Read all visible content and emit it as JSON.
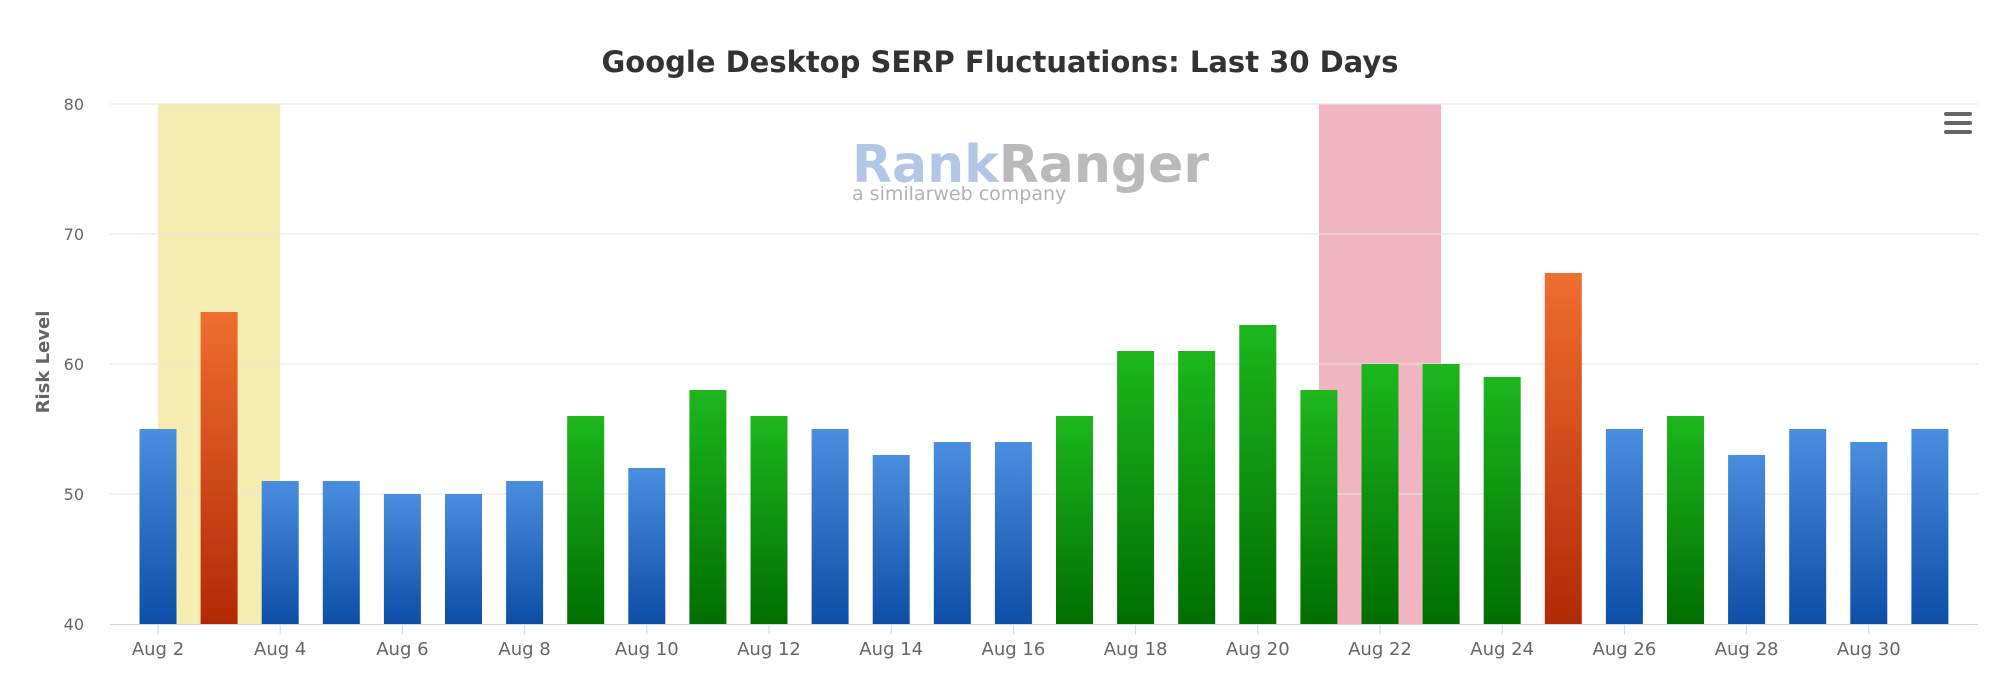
{
  "chart_data": {
    "type": "bar",
    "title": "Google Desktop SERP Fluctuations: Last 30 Days",
    "ylabel": "Risk Level",
    "ylim": [
      40,
      80
    ],
    "yticks": [
      "40",
      "50",
      "60",
      "70",
      "80"
    ],
    "xtick_labels": [
      "Aug 2",
      "Aug 4",
      "Aug 6",
      "Aug 8",
      "Aug 10",
      "Aug 12",
      "Aug 14",
      "Aug 16",
      "Aug 18",
      "Aug 20",
      "Aug 22",
      "Aug 24",
      "Aug 26",
      "Aug 28",
      "Aug 30"
    ],
    "grid": true,
    "bars": [
      {
        "date": "Aug 2",
        "value": 55,
        "level": "blue"
      },
      {
        "date": "Aug 3",
        "value": 64,
        "level": "red"
      },
      {
        "date": "Aug 4",
        "value": 51,
        "level": "blue"
      },
      {
        "date": "Aug 5",
        "value": 51,
        "level": "blue"
      },
      {
        "date": "Aug 6",
        "value": 50,
        "level": "blue"
      },
      {
        "date": "Aug 7",
        "value": 50,
        "level": "blue"
      },
      {
        "date": "Aug 8",
        "value": 51,
        "level": "blue"
      },
      {
        "date": "Aug 9",
        "value": 56,
        "level": "green"
      },
      {
        "date": "Aug 10",
        "value": 52,
        "level": "blue"
      },
      {
        "date": "Aug 11",
        "value": 58,
        "level": "green"
      },
      {
        "date": "Aug 12",
        "value": 56,
        "level": "green"
      },
      {
        "date": "Aug 13",
        "value": 55,
        "level": "blue"
      },
      {
        "date": "Aug 14",
        "value": 53,
        "level": "blue"
      },
      {
        "date": "Aug 15",
        "value": 54,
        "level": "blue"
      },
      {
        "date": "Aug 16",
        "value": 54,
        "level": "blue"
      },
      {
        "date": "Aug 17",
        "value": 56,
        "level": "green"
      },
      {
        "date": "Aug 18",
        "value": 61,
        "level": "green"
      },
      {
        "date": "Aug 19",
        "value": 61,
        "level": "green"
      },
      {
        "date": "Aug 20",
        "value": 63,
        "level": "green"
      },
      {
        "date": "Aug 21",
        "value": 58,
        "level": "green"
      },
      {
        "date": "Aug 22",
        "value": 60,
        "level": "green"
      },
      {
        "date": "Aug 23",
        "value": 60,
        "level": "green"
      },
      {
        "date": "Aug 24",
        "value": 59,
        "level": "green"
      },
      {
        "date": "Aug 25",
        "value": 67,
        "level": "red"
      },
      {
        "date": "Aug 26",
        "value": 55,
        "level": "blue"
      },
      {
        "date": "Aug 27",
        "value": 56,
        "level": "green"
      },
      {
        "date": "Aug 28",
        "value": 53,
        "level": "blue"
      },
      {
        "date": "Aug 29",
        "value": 55,
        "level": "blue"
      },
      {
        "date": "Aug 30",
        "value": 54,
        "level": "blue"
      },
      {
        "date": "Aug 31",
        "value": 55,
        "level": "blue"
      }
    ],
    "bands": [
      {
        "from": "Aug 2",
        "to": "Aug 4",
        "color": "#f5ecb0"
      },
      {
        "from": "Aug 21",
        "to": "Aug 23",
        "color": "#f0b5c0"
      }
    ],
    "level_colors": {
      "blue": {
        "top": "#4a8ee0",
        "bottom": "#0d4ea6"
      },
      "green": {
        "top": "#1db71d",
        "bottom": "#006e00"
      },
      "red": {
        "top": "#ef6e30",
        "bottom": "#b02a05"
      }
    }
  },
  "watermark": {
    "brand_part1": "Rank",
    "brand_part2": "Ranger",
    "tagline": "a similarweb company",
    "color1": "#a9c2e3",
    "color2": "#b3b3b3"
  },
  "menu": {
    "icon": "hamburger-menu-icon"
  }
}
